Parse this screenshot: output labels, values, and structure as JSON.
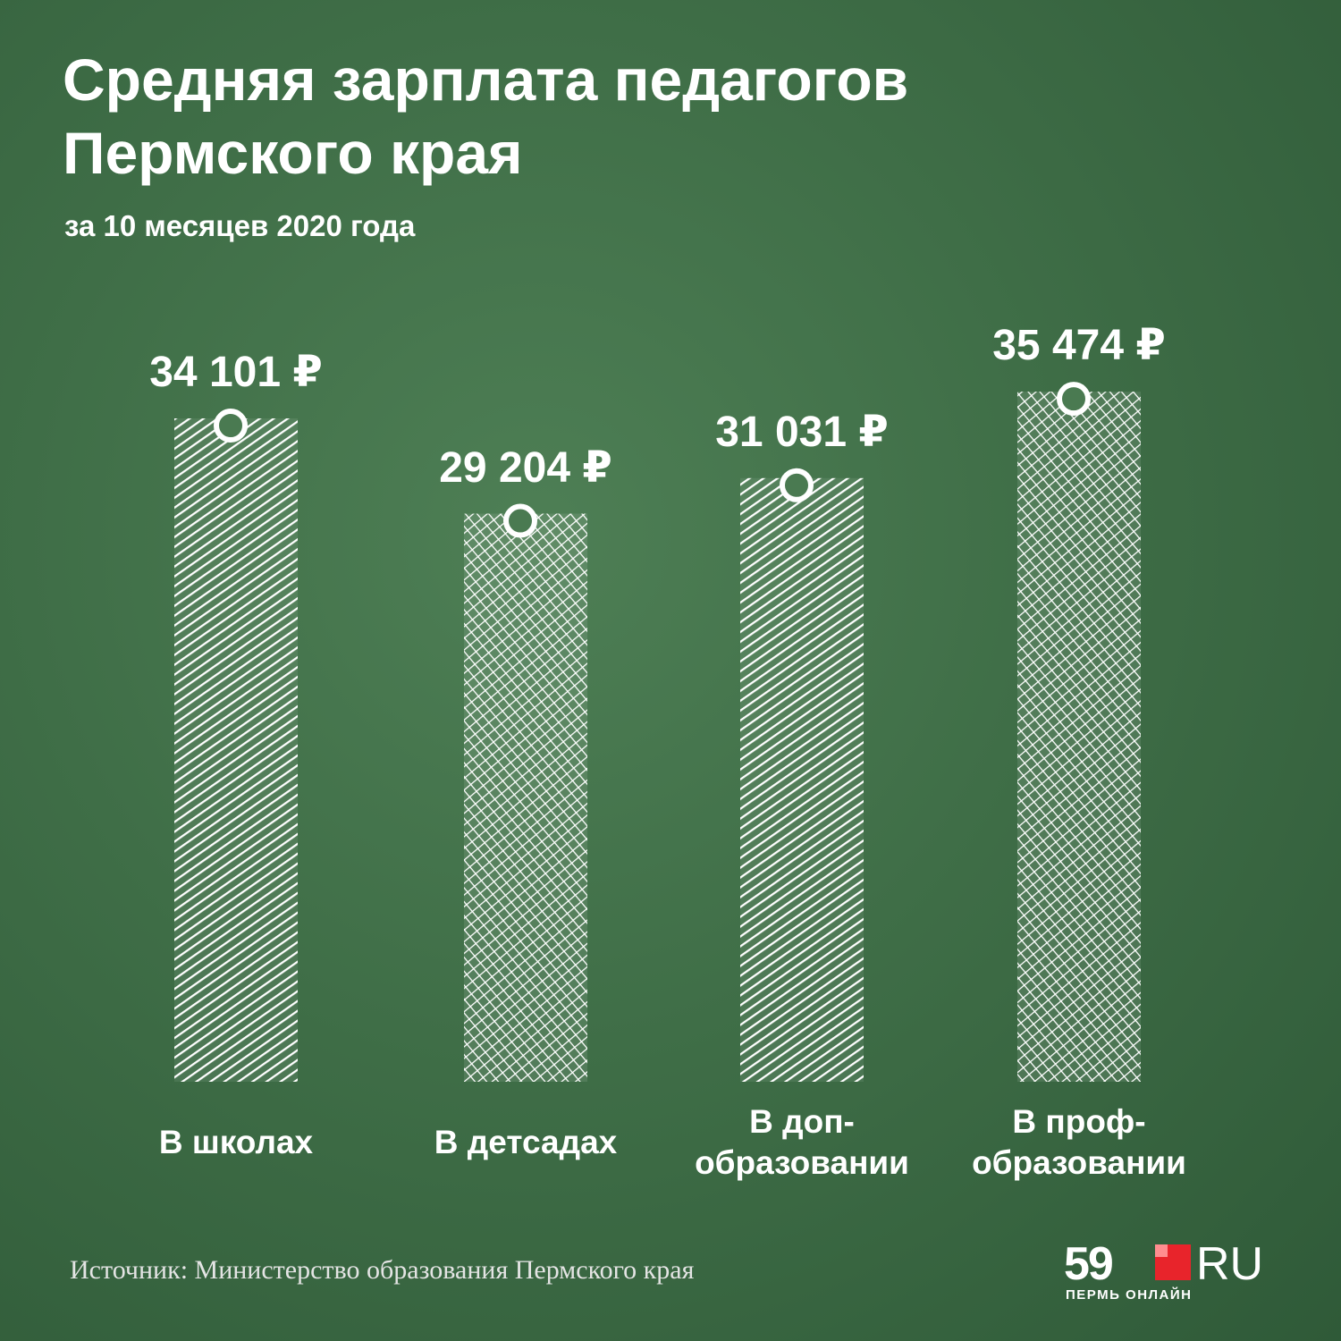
{
  "chart_data": {
    "type": "bar",
    "title": "Средняя зарплата педагогов\nПермского края",
    "subtitle": "за 10 месяцев 2020 года",
    "categories": [
      "В школах",
      "В детсадах",
      "В доп-\nобразовании",
      "В проф-\nобразовании"
    ],
    "values": [
      34101,
      29204,
      31031,
      35474
    ],
    "value_labels": [
      "34 101 ₽",
      "29 204 ₽",
      "31 031 ₽",
      "35 474 ₽"
    ],
    "color": "#ffffff",
    "source": "Источник: Министерство образования Пермского края"
  },
  "logo": {
    "number": "59",
    "suffix": "RU",
    "tagline": "ПЕРМЬ ОНЛАЙН"
  }
}
